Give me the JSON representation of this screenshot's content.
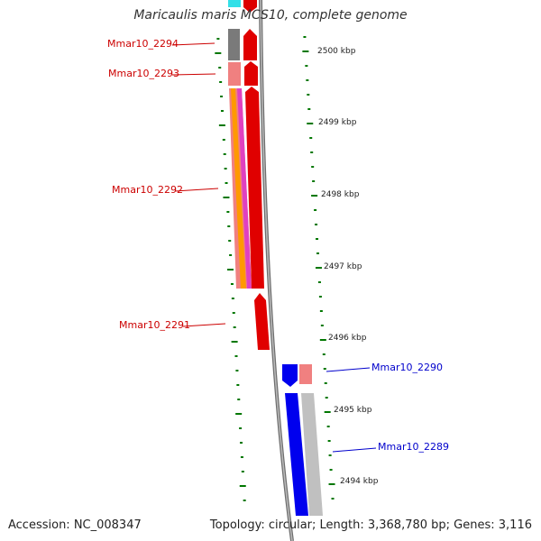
{
  "title": "Maricaulis maris MCS10, complete genome",
  "footer": {
    "accession": "Accession: NC_008347",
    "summary": "Topology: circular; Length: 3,368,780 bp; Genes: 3,116"
  },
  "scale_labels": [
    "2500 kbp",
    "2499 kbp",
    "2498 kbp",
    "2497 kbp",
    "2496 kbp",
    "2495 kbp",
    "2494 kbp"
  ],
  "genes_forward": [
    "Mmar10_2294",
    "Mmar10_2293",
    "Mmar10_2292",
    "Mmar10_2291"
  ],
  "genes_reverse": [
    "Mmar10_2290",
    "Mmar10_2289"
  ],
  "colors": {
    "forward_cds": "#ff0000",
    "reverse_cds": "#0000ff",
    "scale_ticks": "#007700",
    "backbone": "#808080"
  }
}
